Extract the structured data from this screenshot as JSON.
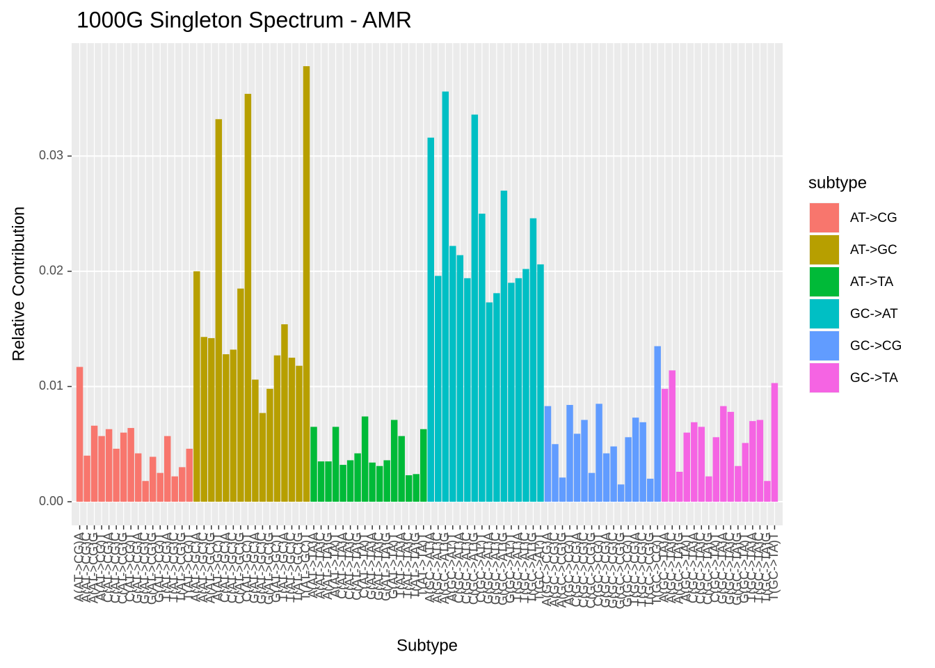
{
  "chart_data": {
    "type": "bar",
    "title": "1000G Singleton Spectrum - AMR",
    "x_label": "Subtype",
    "y_label": "Relative Contribution",
    "legend_title": "subtype",
    "legend_position": "right",
    "grid": true,
    "ylim": [
      -0.00205,
      0.0398
    ],
    "yticks": [
      {
        "value": 0,
        "label": "0.00"
      },
      0.01,
      0.02,
      0.03
    ],
    "series": [
      {
        "name": "AT->CG",
        "color": "#f8766d",
        "categories": [
          "A(AT->CG)A",
          "A(AT->CG)C",
          "A(AT->CG)G",
          "A(AT->CG)T",
          "C(AT->CG)A",
          "C(AT->CG)C",
          "C(AT->CG)G",
          "C(AT->CG)T",
          "G(AT->CG)A",
          "G(AT->CG)C",
          "G(AT->CG)G",
          "G(AT->CG)T",
          "T(AT->CG)A",
          "T(AT->CG)C",
          "T(AT->CG)G",
          "T(AT->CG)T"
        ],
        "values": [
          0.0117,
          0.004,
          0.0066,
          0.0057,
          0.0063,
          0.0046,
          0.006,
          0.0064,
          0.0042,
          0.0018,
          0.0039,
          0.0025,
          0.0057,
          0.0022,
          0.003,
          0.0046
        ]
      },
      {
        "name": "AT->GC",
        "color": "#b79f00",
        "categories": [
          "A(AT->GC)A",
          "A(AT->GC)C",
          "A(AT->GC)G",
          "A(AT->GC)T",
          "C(AT->GC)A",
          "C(AT->GC)C",
          "C(AT->GC)G",
          "C(AT->GC)T",
          "G(AT->GC)A",
          "G(AT->GC)C",
          "G(AT->GC)G",
          "G(AT->GC)T",
          "T(AT->GC)A",
          "T(AT->GC)C",
          "T(AT->GC)G",
          "T(AT->GC)T"
        ],
        "values": [
          0.02,
          0.0143,
          0.0142,
          0.0332,
          0.0128,
          0.0132,
          0.0185,
          0.0354,
          0.0106,
          0.0077,
          0.0098,
          0.0127,
          0.0154,
          0.0125,
          0.0118,
          0.0378
        ]
      },
      {
        "name": "AT->TA",
        "color": "#00ba38",
        "categories": [
          "A(AT->TA)A",
          "A(AT->TA)C",
          "A(AT->TA)G",
          "A(AT->TA)T",
          "C(AT->TA)A",
          "C(AT->TA)C",
          "C(AT->TA)G",
          "C(AT->TA)T",
          "G(AT->TA)A",
          "G(AT->TA)C",
          "G(AT->TA)G",
          "G(AT->TA)T",
          "T(AT->TA)A",
          "T(AT->TA)C",
          "T(AT->TA)G",
          "T(AT->TA)T"
        ],
        "values": [
          0.0065,
          0.0035,
          0.0035,
          0.0065,
          0.0032,
          0.0036,
          0.0042,
          0.0074,
          0.0034,
          0.0031,
          0.0036,
          0.0071,
          0.0057,
          0.0023,
          0.0024,
          0.0063
        ]
      },
      {
        "name": "GC->AT",
        "color": "#00bfc4",
        "categories": [
          "A(GC->AT)A",
          "A(GC->AT)C",
          "A(GC->AT)G",
          "A(GC->AT)T",
          "C(GC->AT)A",
          "C(GC->AT)C",
          "C(GC->AT)G",
          "C(GC->AT)T",
          "G(GC->AT)A",
          "G(GC->AT)C",
          "G(GC->AT)G",
          "G(GC->AT)T",
          "T(GC->AT)A",
          "T(GC->AT)C",
          "T(GC->AT)G",
          "T(GC->AT)T"
        ],
        "values": [
          0.0316,
          0.0196,
          0.0356,
          0.0222,
          0.0214,
          0.0194,
          0.0336,
          0.025,
          0.0173,
          0.0181,
          0.027,
          0.019,
          0.0194,
          0.0202,
          0.0246,
          0.0206
        ]
      },
      {
        "name": "GC->CG",
        "color": "#619cff",
        "categories": [
          "A(GC->CG)A",
          "A(GC->CG)C",
          "A(GC->CG)G",
          "A(GC->CG)T",
          "C(GC->CG)A",
          "C(GC->CG)C",
          "C(GC->CG)G",
          "C(GC->CG)T",
          "G(GC->CG)A",
          "G(GC->CG)C",
          "G(GC->CG)G",
          "G(GC->CG)T",
          "T(GC->CG)A",
          "T(GC->CG)C",
          "T(GC->CG)G",
          "T(GC->CG)T"
        ],
        "values": [
          0.0083,
          0.005,
          0.0021,
          0.0084,
          0.0059,
          0.0071,
          0.0025,
          0.0085,
          0.0042,
          0.0048,
          0.0015,
          0.0056,
          0.0073,
          0.0069,
          0.002,
          0.0135
        ]
      },
      {
        "name": "GC->TA",
        "color": "#f564e3",
        "categories": [
          "A(GC->TA)A",
          "A(GC->TA)C",
          "A(GC->TA)G",
          "A(GC->TA)T",
          "C(GC->TA)A",
          "C(GC->TA)C",
          "C(GC->TA)G",
          "C(GC->TA)T",
          "G(GC->TA)A",
          "G(GC->TA)C",
          "G(GC->TA)G",
          "G(GC->TA)T",
          "T(GC->TA)A",
          "T(GC->TA)C",
          "T(GC->TA)G",
          "T(GC->TA)T"
        ],
        "values": [
          0.0098,
          0.0114,
          0.0026,
          0.006,
          0.0069,
          0.0065,
          0.0022,
          0.0056,
          0.0083,
          0.0078,
          0.0031,
          0.0051,
          0.007,
          0.0071,
          0.0018,
          0.0103
        ]
      }
    ]
  }
}
